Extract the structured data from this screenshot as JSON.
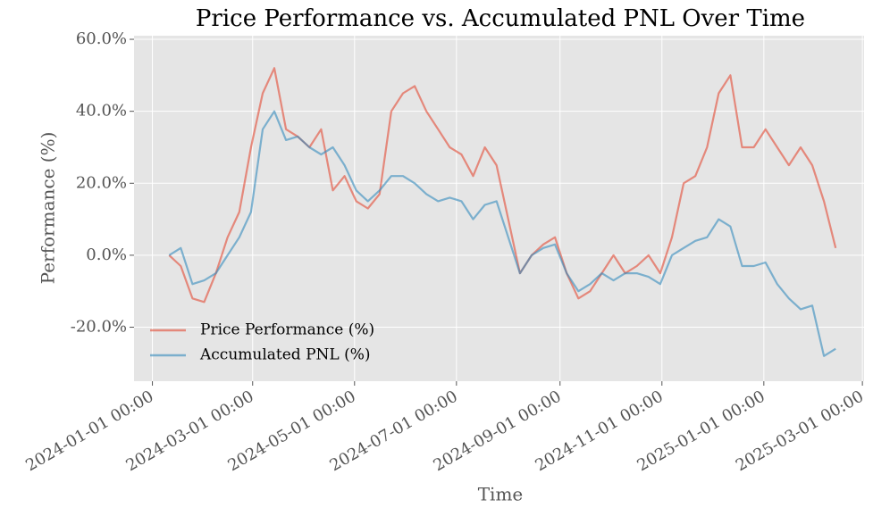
{
  "chart_data": {
    "type": "line",
    "title": "Price Performance vs. Accumulated PNL Over Time",
    "x_label": "Time",
    "y_label": "Performance (%)",
    "x": [
      "2024-01-11 00:00",
      "2024-01-18 00:00",
      "2024-01-25 00:00",
      "2024-02-01 00:00",
      "2024-02-08 00:00",
      "2024-02-15 00:00",
      "2024-02-22 00:00",
      "2024-02-29 00:00",
      "2024-03-07 00:00",
      "2024-03-14 00:00",
      "2024-03-21 00:00",
      "2024-03-28 00:00",
      "2024-04-04 00:00",
      "2024-04-11 00:00",
      "2024-04-18 00:00",
      "2024-04-25 00:00",
      "2024-05-02 00:00",
      "2024-05-09 00:00",
      "2024-05-16 00:00",
      "2024-05-23 00:00",
      "2024-05-30 00:00",
      "2024-06-06 00:00",
      "2024-06-13 00:00",
      "2024-06-20 00:00",
      "2024-06-27 00:00",
      "2024-07-04 00:00",
      "2024-07-11 00:00",
      "2024-07-18 00:00",
      "2024-07-25 00:00",
      "2024-08-01 00:00",
      "2024-08-08 00:00",
      "2024-08-15 00:00",
      "2024-08-22 00:00",
      "2024-08-29 00:00",
      "2024-09-05 00:00",
      "2024-09-12 00:00",
      "2024-09-19 00:00",
      "2024-09-26 00:00",
      "2024-10-03 00:00",
      "2024-10-10 00:00",
      "2024-10-17 00:00",
      "2024-10-24 00:00",
      "2024-10-31 00:00",
      "2024-11-07 00:00",
      "2024-11-14 00:00",
      "2024-11-21 00:00",
      "2024-11-28 00:00",
      "2024-12-05 00:00",
      "2024-12-12 00:00",
      "2024-12-19 00:00",
      "2024-12-26 00:00",
      "2025-01-02 00:00",
      "2025-01-09 00:00",
      "2025-01-16 00:00",
      "2025-01-23 00:00",
      "2025-01-30 00:00",
      "2025-02-06 00:00",
      "2025-02-13 00:00"
    ],
    "series": [
      {
        "name": "Price Performance (%)",
        "color": "#E24A33",
        "values": [
          0,
          -3,
          -12,
          -13,
          -5,
          5,
          12,
          30,
          45,
          52,
          35,
          33,
          30,
          35,
          18,
          22,
          15,
          13,
          17,
          40,
          45,
          47,
          40,
          35,
          30,
          28,
          22,
          30,
          25,
          10,
          -5,
          0,
          3,
          5,
          -5,
          -12,
          -10,
          -5,
          0,
          -5,
          -3,
          0,
          -5,
          5,
          20,
          22,
          30,
          45,
          50,
          30,
          30,
          35,
          30,
          25,
          30,
          25,
          15,
          2
        ]
      },
      {
        "name": "Accumulated PNL (%)",
        "color": "#348ABD",
        "values": [
          0,
          2,
          -8,
          -7,
          -5,
          0,
          5,
          12,
          35,
          40,
          32,
          33,
          30,
          28,
          30,
          25,
          18,
          15,
          18,
          22,
          22,
          20,
          17,
          15,
          16,
          15,
          10,
          14,
          15,
          5,
          -5,
          0,
          2,
          3,
          -5,
          -10,
          -8,
          -5,
          -7,
          -5,
          -5,
          -6,
          -8,
          0,
          2,
          4,
          5,
          10,
          8,
          -3,
          -3,
          -2,
          -8,
          -12,
          -15,
          -14,
          -28,
          -26
        ]
      }
    ],
    "xlim": [
      "2023-12-21 00:00",
      "2025-03-02 00:00"
    ],
    "xticks": [
      "2024-01-01 00:00",
      "2024-03-01 00:00",
      "2024-05-01 00:00",
      "2024-07-01 00:00",
      "2024-09-01 00:00",
      "2024-11-01 00:00",
      "2025-01-01 00:00",
      "2025-03-01 00:00"
    ],
    "ylim": [
      -35,
      61
    ],
    "yticks": [
      {
        "value": -20,
        "label": "-20.0%"
      },
      {
        "value": 0,
        "label": "0.0%"
      },
      {
        "value": 20,
        "label": "20.0%"
      },
      {
        "value": 40,
        "label": "40.0%"
      },
      {
        "value": 60,
        "label": "60.0%"
      }
    ],
    "grid": true,
    "legend": "lower left"
  }
}
